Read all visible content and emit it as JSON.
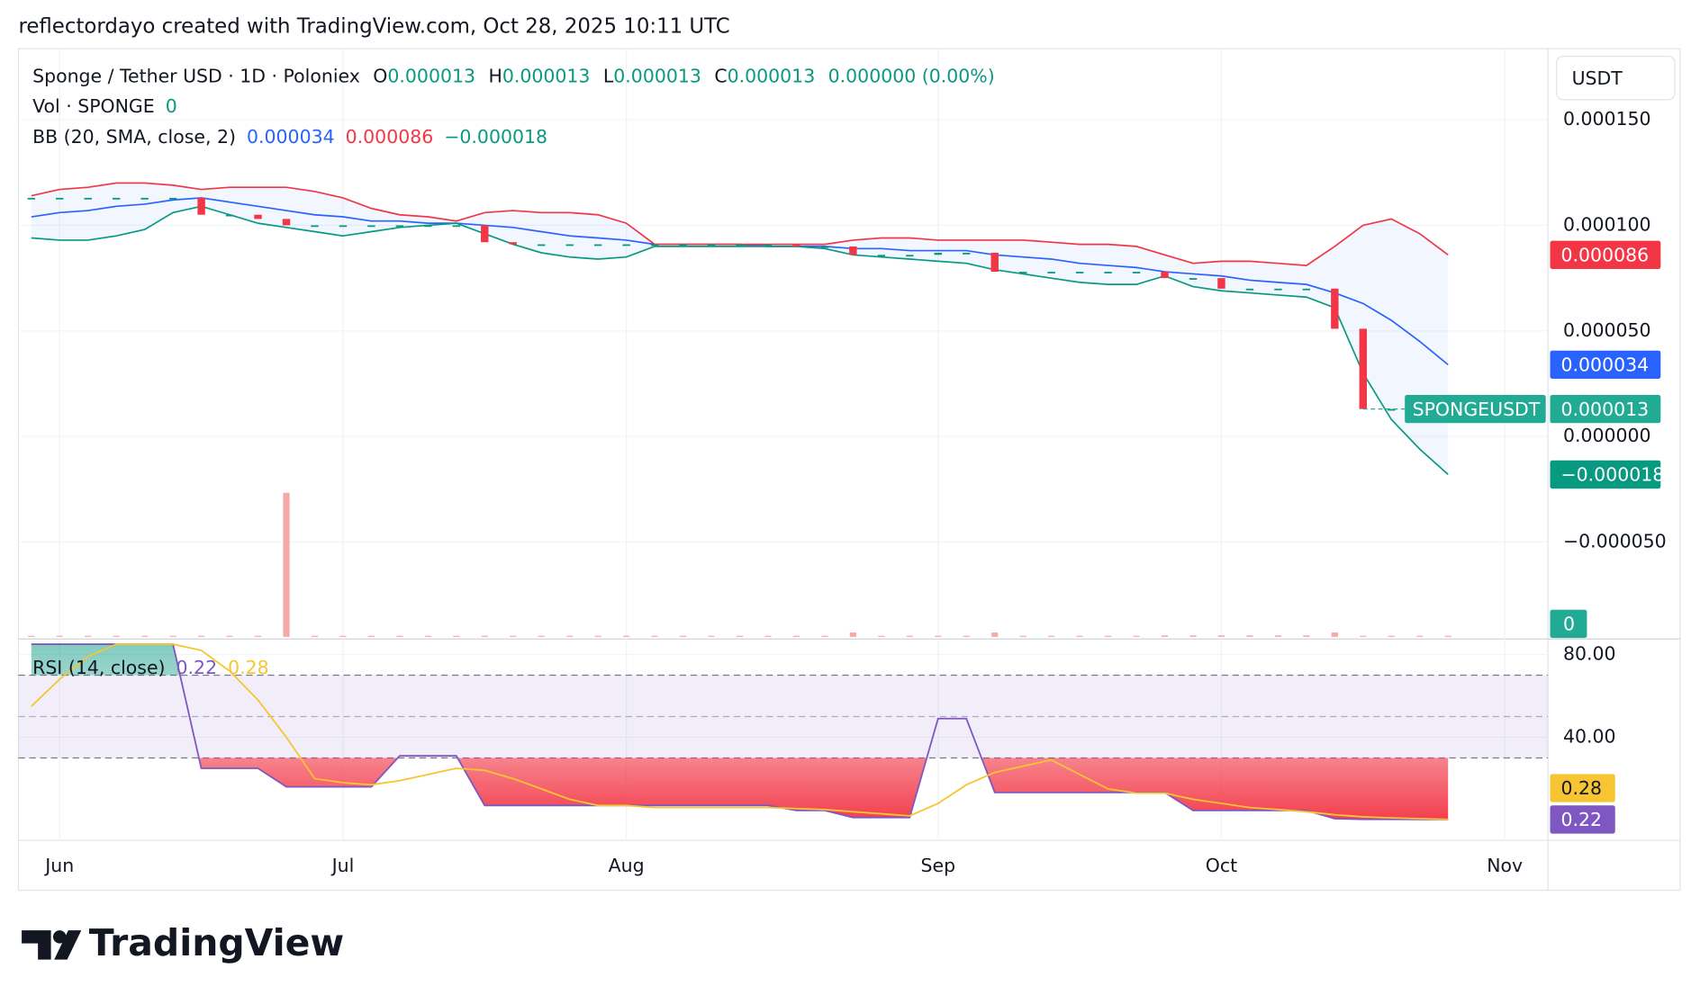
{
  "attribution": "reflectordayo created with TradingView.com, Oct 28, 2025 10:11 UTC",
  "brand": "TradingView",
  "chart_data": [
    {
      "type": "candlestick",
      "title": "Sponge / Tether USD · 1D · Poloniex",
      "ohlc": [
        {
          "key": "O",
          "value": 1.3e-05
        },
        {
          "key": "H",
          "value": 1.3e-05
        },
        {
          "key": "L",
          "value": 1.3e-05
        },
        {
          "key": "C",
          "value": 1.3e-05
        }
      ],
      "change": {
        "value": 0,
        "label": "0.000000 (0.00%)"
      },
      "symbol": "SPONGEUSDT",
      "currency": "USDT",
      "color_up": "#089981",
      "color_down": "#f23645",
      "color_flat": "#089981",
      "values": [
        0.000113,
        0.000113,
        0.000113,
        0.000113,
        0.000113,
        0.000113,
        0.000105,
        0.000105,
        0.000103,
        0.0001,
        0.0001,
        0.0001,
        0.0001,
        0.0001,
        0.0001,
        0.0001,
        9.2e-05,
        9.1e-05,
        9.1e-05,
        9.1e-05,
        9.1e-05,
        9.1e-05,
        9.1e-05,
        9.1e-05,
        9.1e-05,
        9.1e-05,
        9.1e-05,
        9e-05,
        9e-05,
        8.6e-05,
        8.6e-05,
        8.6e-05,
        8.7e-05,
        8.7e-05,
        7.8e-05,
        7.8e-05,
        7.8e-05,
        7.8e-05,
        7.8e-05,
        7.8e-05,
        7.5e-05,
        7.5e-05,
        7e-05,
        7e-05,
        7e-05,
        7e-05,
        5.1e-05,
        1.3e-05,
        1.3e-05,
        1.3e-05,
        1.3e-05,
        null,
        null
      ],
      "ylim": [
        -9.59e-05,
        0.0001836
      ],
      "yticks": [
        {
          "value": 0.00015,
          "label": "0.000150"
        },
        {
          "value": 0.0001,
          "label": "0.000100"
        },
        {
          "value": 5e-05,
          "label": "0.000050"
        },
        {
          "value": 0,
          "label": "0.000000"
        },
        {
          "value": -5e-05,
          "label": "−0.000050"
        }
      ],
      "grid": true,
      "volume": {
        "name": "Vol · SPONGE",
        "color": "#f7a9a7",
        "tag_color": "#22ab94",
        "values": [
          0,
          0,
          0,
          0,
          0,
          0,
          0,
          0,
          0,
          100,
          0,
          0,
          0,
          0,
          0,
          0,
          0,
          0,
          0,
          0,
          0,
          0,
          0,
          0,
          0,
          0,
          0,
          0,
          0,
          3,
          0,
          0,
          0,
          0,
          3,
          0,
          0,
          0,
          0,
          0,
          1,
          1,
          1,
          1,
          1,
          1,
          3,
          0,
          0,
          0,
          0,
          null,
          null
        ],
        "ylim": [
          0,
          100
        ]
      },
      "bollinger": {
        "name": "BB (20, SMA, close, 2)",
        "fill": "rgba(41,98,255,0.06)",
        "series": [
          {
            "color": "#2962ff",
            "values": [
              0.000104,
              0.000106,
              0.000107,
              0.000109,
              0.00011,
              0.000112,
              0.000113,
              0.000111,
              0.000109,
              0.000107,
              0.000105,
              0.000104,
              0.000102,
              0.000102,
              0.000101,
              0.000101,
              0.0001,
              9.9e-05,
              9.7e-05,
              9.5e-05,
              9.4e-05,
              9.3e-05,
              9.1e-05,
              9.1e-05,
              9.1e-05,
              9.1e-05,
              9e-05,
              9e-05,
              9e-05,
              8.9e-05,
              8.9e-05,
              8.8e-05,
              8.8e-05,
              8.8e-05,
              8.6e-05,
              8.5e-05,
              8.4e-05,
              8.2e-05,
              8.1e-05,
              8e-05,
              7.8e-05,
              7.7e-05,
              7.6e-05,
              7.4e-05,
              7.3e-05,
              7.2e-05,
              6.8e-05,
              6.3e-05,
              5.5e-05,
              4.5e-05,
              3.4e-05,
              null,
              null
            ]
          },
          {
            "color": "#f23645",
            "values": [
              0.000114,
              0.000117,
              0.000118,
              0.00012,
              0.00012,
              0.000119,
              0.000117,
              0.000118,
              0.000118,
              0.000118,
              0.000116,
              0.000113,
              0.000108,
              0.000105,
              0.000104,
              0.000102,
              0.000106,
              0.000107,
              0.000106,
              0.000106,
              0.000105,
              0.000101,
              9.1e-05,
              9.1e-05,
              9.1e-05,
              9.1e-05,
              9.1e-05,
              9.1e-05,
              9.1e-05,
              9.3e-05,
              9.4e-05,
              9.4e-05,
              9.3e-05,
              9.3e-05,
              9.3e-05,
              9.3e-05,
              9.2e-05,
              9.1e-05,
              9.1e-05,
              9e-05,
              8.6e-05,
              8.2e-05,
              8.3e-05,
              8.3e-05,
              8.2e-05,
              8.1e-05,
              9e-05,
              0.0001,
              0.000103,
              9.6e-05,
              8.6e-05,
              null,
              null
            ]
          },
          {
            "color": "#089981",
            "values": [
              9.4e-05,
              9.3e-05,
              9.3e-05,
              9.5e-05,
              9.8e-05,
              0.000106,
              0.000109,
              0.000105,
              0.000101,
              9.9e-05,
              9.7e-05,
              9.5e-05,
              9.7e-05,
              9.9e-05,
              0.0001,
              0.000101,
              9.6e-05,
              9.1e-05,
              8.7e-05,
              8.5e-05,
              8.4e-05,
              8.5e-05,
              9e-05,
              9e-05,
              9e-05,
              9e-05,
              9e-05,
              9e-05,
              8.9e-05,
              8.6e-05,
              8.5e-05,
              8.4e-05,
              8.3e-05,
              8.2e-05,
              7.9e-05,
              7.7e-05,
              7.5e-05,
              7.3e-05,
              7.2e-05,
              7.2e-05,
              7.6e-05,
              7.1e-05,
              6.9e-05,
              6.8e-05,
              6.7e-05,
              6.6e-05,
              6.1e-05,
              3e-05,
              8e-06,
              -6e-06,
              -1.8e-05,
              null,
              null
            ],
            "value_labels": [
              null,
              null,
              null,
              null,
              null,
              null,
              null,
              null,
              null,
              null,
              null,
              null,
              null,
              null,
              null,
              null,
              null,
              null,
              null,
              null,
              null,
              null,
              null,
              null,
              null,
              null,
              null,
              null,
              null,
              null,
              null,
              null,
              null,
              null,
              null,
              null,
              null,
              null,
              null,
              null,
              null,
              null,
              null,
              null,
              null,
              null,
              null,
              null,
              null,
              null,
              "−0.000018",
              null,
              null
            ]
          }
        ]
      }
    },
    {
      "type": "line",
      "title": "RSI (14, close)",
      "categories": [
        null,
        "Jun",
        null,
        null,
        null,
        null,
        null,
        null,
        null,
        null,
        null,
        "Jul",
        null,
        null,
        null,
        null,
        null,
        null,
        null,
        null,
        null,
        "Aug",
        null,
        null,
        null,
        null,
        null,
        null,
        null,
        null,
        null,
        null,
        "Sep",
        null,
        null,
        null,
        null,
        null,
        null,
        null,
        null,
        null,
        "Oct",
        null,
        null,
        null,
        null,
        null,
        null,
        null,
        null,
        null,
        "Nov"
      ],
      "series": [
        {
          "color": "#7e57c2",
          "values": [
            85,
            85,
            85,
            85,
            85,
            85,
            25,
            25,
            25,
            16,
            16,
            16,
            16,
            31,
            31,
            31,
            7,
            7,
            7,
            7,
            7,
            7,
            7,
            7,
            7,
            7,
            7,
            4.6,
            4.6,
            1.2,
            1.2,
            1.2,
            49,
            49,
            13.3,
            13.3,
            13.3,
            13.3,
            13.3,
            13.3,
            13.3,
            4.6,
            4.6,
            4.6,
            4.6,
            4.6,
            0.6,
            0.3,
            0.3,
            0.25,
            0.22,
            null,
            null
          ]
        },
        {
          "color": "#f7c531",
          "values": [
            55,
            68,
            79,
            85,
            85,
            85,
            82,
            72,
            58,
            40,
            20,
            18,
            17,
            19,
            22,
            25,
            24,
            20,
            15,
            10,
            7,
            7,
            6,
            6,
            6,
            6,
            6,
            5.5,
            5,
            4,
            3,
            2,
            8,
            17,
            23,
            26,
            29,
            22,
            15,
            13,
            13,
            10,
            8,
            6,
            5,
            4,
            2.5,
            1.5,
            1,
            0.6,
            0.28,
            null,
            null
          ]
        }
      ],
      "ylim": [
        -9.9,
        87.5
      ],
      "yticks": [
        {
          "value": 80,
          "label": "80.00"
        },
        {
          "value": 40,
          "label": "40.00"
        }
      ],
      "levels": [
        70,
        50,
        30
      ]
    }
  ]
}
